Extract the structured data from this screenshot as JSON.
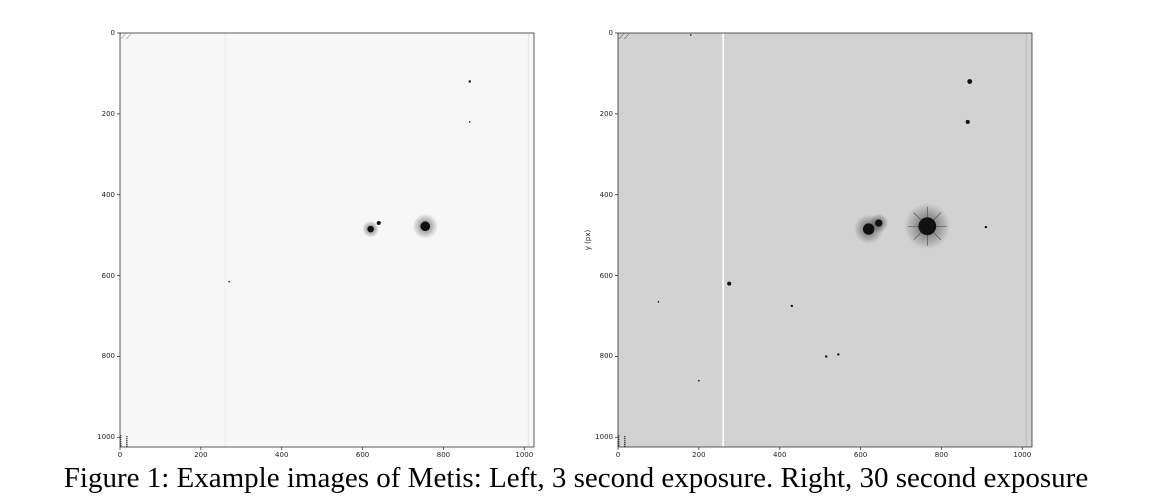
{
  "caption": "Figure 1: Example images of Metis: Left, 3 second exposure. Right, 30 second exposure",
  "chart_data": [
    {
      "type": "heatmap",
      "colormap": "gray_r",
      "x_ticks": [
        0,
        200,
        400,
        600,
        800,
        1000
      ],
      "y_ticks": [
        0,
        200,
        400,
        600,
        800,
        1000
      ],
      "xlim": [
        0,
        1024
      ],
      "ylim": [
        1024,
        0
      ],
      "ylabel": "",
      "background": "#f7f7f7",
      "sources": [
        {
          "x": 755,
          "y": 478,
          "r": 12
        },
        {
          "x": 620,
          "y": 485,
          "r": 8
        },
        {
          "x": 640,
          "y": 470,
          "r": 5
        },
        {
          "x": 865,
          "y": 120,
          "r": 3
        },
        {
          "x": 865,
          "y": 220,
          "r": 2
        },
        {
          "x": 270,
          "y": 615,
          "r": 2
        }
      ]
    },
    {
      "type": "heatmap",
      "colormap": "gray_r",
      "x_ticks": [
        0,
        200,
        400,
        600,
        800,
        1000
      ],
      "y_ticks": [
        0,
        200,
        400,
        600,
        800,
        1000
      ],
      "xlim": [
        0,
        1024
      ],
      "ylim": [
        1024,
        0
      ],
      "ylabel": "y (px)",
      "background": "#d2d2d2",
      "sources": [
        {
          "x": 765,
          "y": 478,
          "r": 22
        },
        {
          "x": 620,
          "y": 485,
          "r": 14
        },
        {
          "x": 645,
          "y": 470,
          "r": 9
        },
        {
          "x": 870,
          "y": 120,
          "r": 6
        },
        {
          "x": 865,
          "y": 220,
          "r": 5
        },
        {
          "x": 275,
          "y": 620,
          "r": 5
        },
        {
          "x": 430,
          "y": 675,
          "r": 3
        },
        {
          "x": 515,
          "y": 800,
          "r": 3
        },
        {
          "x": 545,
          "y": 795,
          "r": 3
        },
        {
          "x": 910,
          "y": 480,
          "r": 3
        },
        {
          "x": 200,
          "y": 860,
          "r": 2
        },
        {
          "x": 100,
          "y": 665,
          "r": 2
        },
        {
          "x": 180,
          "y": 5,
          "r": 2
        }
      ]
    }
  ]
}
